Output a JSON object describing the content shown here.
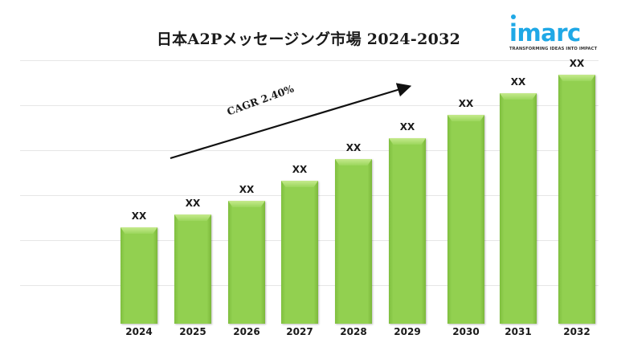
{
  "title": "日本A2Pメッセージング市場 2024-2032",
  "logo": {
    "word": "imarc",
    "tagline": "TRANSFORMING IDEAS INTO IMPACT",
    "color": "#1fa8e6"
  },
  "annotation": {
    "cagr_label": "CAGR 2.40%"
  },
  "chart_data": {
    "type": "bar",
    "title": "日本A2Pメッセージング市場 2024-2032",
    "xlabel": "",
    "ylabel": "",
    "categories": [
      "2024",
      "2025",
      "2026",
      "2027",
      "2028",
      "2029",
      "2030",
      "2031",
      "2032"
    ],
    "values": [
      120,
      136,
      153,
      178,
      205,
      231,
      260,
      287,
      310
    ],
    "value_labels": [
      "XX",
      "XX",
      "XX",
      "XX",
      "XX",
      "XX",
      "XX",
      "XX",
      "XX"
    ],
    "relative_heights_note": "values are pixel-estimated relative bar heights; actual values masked as XX",
    "grid": true,
    "legend": null,
    "bar_color": "#92d050",
    "annotations": [
      {
        "text": "CAGR 2.40%",
        "type": "arrow",
        "direction": "up-right"
      }
    ]
  }
}
